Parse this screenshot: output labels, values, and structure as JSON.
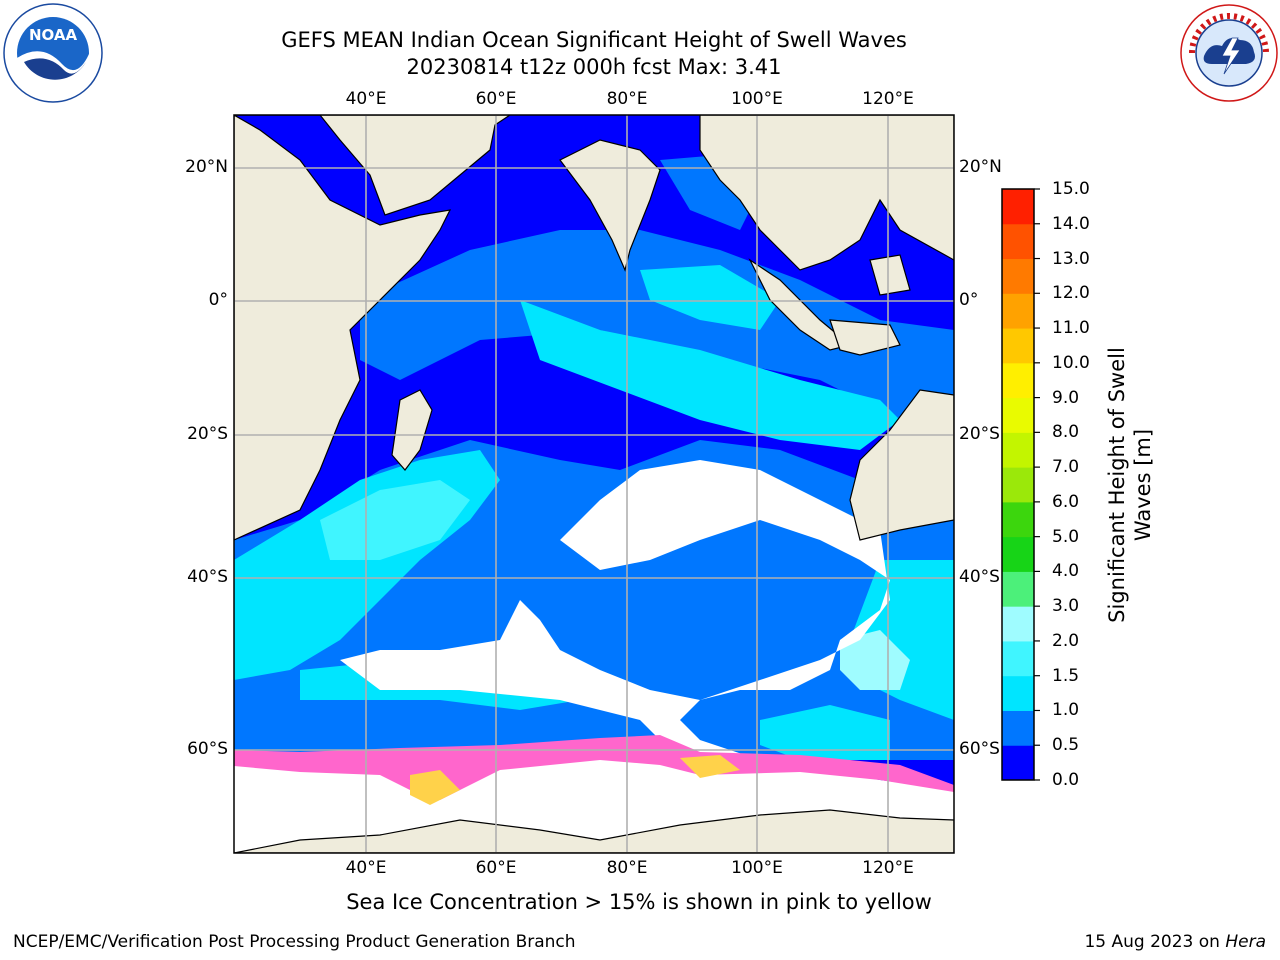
{
  "header": {
    "title_line1": "GEFS MEAN Indian Ocean Significant Height of Swell Waves",
    "title_line2": "20230814 t12z 000h fcst   Max: 3.41"
  },
  "logos": {
    "left": "NOAA",
    "right": "NATIONAL WEATHER SERVICE"
  },
  "map": {
    "lon_ticks_top": [
      "40°E",
      "60°E",
      "80°E",
      "100°E",
      "120°E"
    ],
    "lon_ticks_bottom": [
      "40°E",
      "60°E",
      "80°E",
      "100°E",
      "120°E"
    ],
    "lat_ticks_left": [
      "20°N",
      "0°",
      "20°S",
      "40°S",
      "60°S"
    ],
    "lat_ticks_right": [
      "20°N",
      "0°",
      "20°S",
      "40°S",
      "60°S"
    ],
    "colors": {
      "land": "#efecdc",
      "gridline": "#b0b0b0",
      "ice_pink": "#ff66cc",
      "ice_yellow": "#ffd24a"
    }
  },
  "colorbar": {
    "label_line1": "Significant Height of Swell",
    "label_line2": "Waves [m]",
    "levels": [
      "0.0",
      "0.5",
      "1.0",
      "1.5",
      "2.0",
      "3.0",
      "4.0",
      "5.0",
      "6.0",
      "7.0",
      "8.0",
      "9.0",
      "10.0",
      "11.0",
      "12.0",
      "13.0",
      "14.0",
      "15.0"
    ],
    "colors": [
      "#0000ff",
      "#0077ff",
      "#00e5ff",
      "#40f5ff",
      "#9ffcff",
      "#4cf07a",
      "#17d417",
      "#3cd60d",
      "#9be80a",
      "#c3f500",
      "#e9fb00",
      "#ffef00",
      "#ffc800",
      "#ffa200",
      "#ff7a00",
      "#ff5200",
      "#ff2000"
    ]
  },
  "annotation": "Sea Ice Concentration > 15% is shown in pink to yellow",
  "footer": {
    "left": "NCEP/EMC/Verification Post Processing Product Generation Branch",
    "right_prefix": "15 Aug 2023 on ",
    "right_host": "Hera"
  }
}
